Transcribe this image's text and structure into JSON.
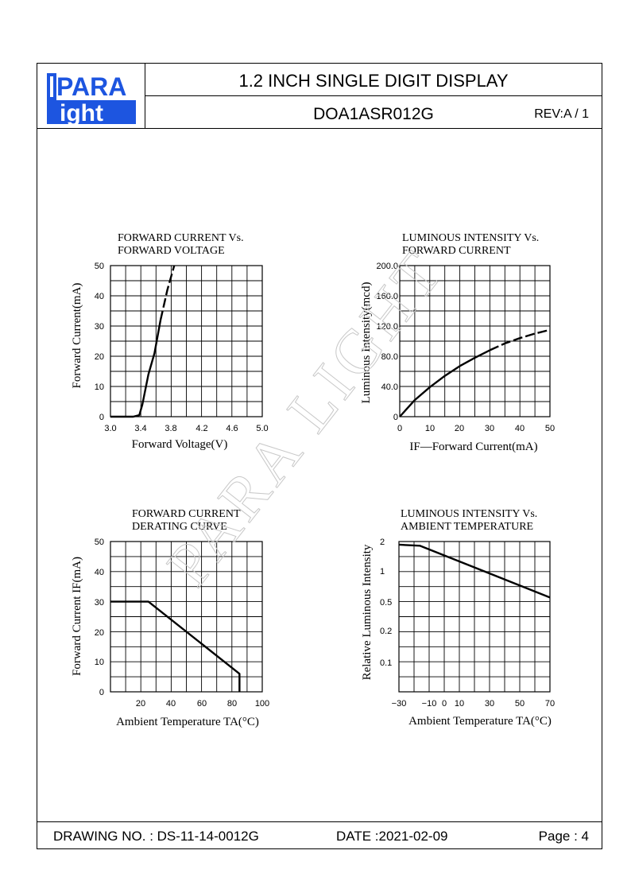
{
  "logo": {
    "top": "PARA",
    "bottom": "ight",
    "l": "L",
    "color": "#1d55e0"
  },
  "header": {
    "title": "1.2   INCH   SINGLE   DIGIT   DISPLAY",
    "model": "DOA1ASR012G",
    "rev": "REV:A / 1"
  },
  "watermark": "PARA LIGHT",
  "footer": {
    "drawing": "DRAWING NO. : DS-11-14-0012G",
    "date": "DATE :2021-02-09",
    "page": "Page : 4"
  },
  "chart_data": [
    {
      "type": "line",
      "title": [
        "FORWARD  CURRENT  Vs.",
        "FORWARD  VOLTAGE"
      ],
      "xlabel": "Forward  Voltage(V)",
      "ylabel": "Forward  Current(mA)",
      "xticks": [
        "3.0",
        "3.4",
        "3.8",
        "4.2",
        "4.6",
        "5.0"
      ],
      "yticks": [
        "0",
        "10",
        "20",
        "30",
        "40",
        "50"
      ],
      "xlim": [
        3.0,
        5.0
      ],
      "ylim": [
        0,
        50
      ],
      "grid": true,
      "series": [
        {
          "x": [
            3.0,
            3.3,
            3.38,
            3.42,
            3.5,
            3.58,
            3.66,
            3.75,
            3.84
          ],
          "y": [
            0,
            0,
            0.5,
            4,
            14,
            21,
            32,
            42,
            50
          ]
        }
      ]
    },
    {
      "type": "line",
      "title": [
        "LUMINOUS  INTENSITY  Vs.",
        "FORWARD  CURRENT"
      ],
      "xlabel": "IF—Forward  Current(mA)",
      "ylabel": "Luminous  Intensity(mcd)",
      "xticks": [
        "0",
        "10",
        "20",
        "30",
        "40",
        "50"
      ],
      "yticks": [
        "0",
        "40.0",
        "80.0",
        "120.0",
        "160.0",
        "200.0"
      ],
      "xlim": [
        0,
        50
      ],
      "ylim": [
        0,
        200
      ],
      "grid": true,
      "series": [
        {
          "x": [
            0,
            5,
            10,
            15,
            20,
            25,
            30,
            35,
            40,
            45,
            50
          ],
          "y": [
            0,
            22,
            39,
            54,
            67,
            78,
            88,
            97,
            104,
            110,
            115
          ]
        }
      ]
    },
    {
      "type": "line",
      "title": [
        "FORWARD  CURRENT",
        "DERATING  CURVE"
      ],
      "xlabel": "Ambient  Temperature  TA(°C)",
      "ylabel": "Forward  Current  IF(mA)",
      "xticks": [
        "20",
        "40",
        "60",
        "80",
        "100"
      ],
      "yticks": [
        "0",
        "10",
        "20",
        "30",
        "40",
        "50"
      ],
      "xlim": [
        0,
        100
      ],
      "ylim": [
        0,
        50
      ],
      "grid": true,
      "series": [
        {
          "x": [
            0,
            25,
            85,
            85
          ],
          "y": [
            30,
            30,
            6,
            0
          ]
        }
      ]
    },
    {
      "type": "line",
      "title": [
        "LUMINOUS  INTENSITY  Vs.",
        "AMBIENT  TEMPERATURE"
      ],
      "xlabel": "Ambient  Temperature  TA(°C)",
      "ylabel": "Relative  Luminous  Intensity",
      "xticks": [
        "−30",
        "−10",
        "0",
        "10",
        "30",
        "50",
        "70"
      ],
      "yticks": [
        "0.1",
        "0.2",
        "0.5",
        "1",
        "2"
      ],
      "xlim": [
        -30,
        70
      ],
      "grid": true,
      "yscale": "log",
      "series": [
        {
          "x": [
            -30,
            -16,
            70
          ],
          "y": [
            1.85,
            1.8,
            0.5
          ]
        }
      ]
    }
  ]
}
